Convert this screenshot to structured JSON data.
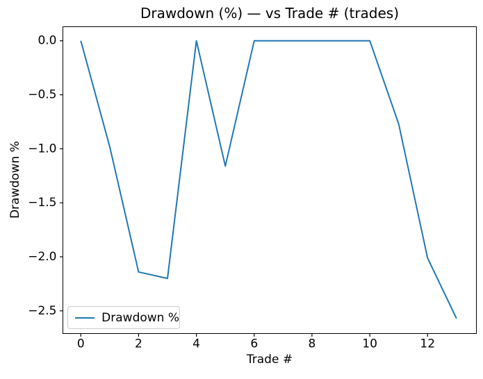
{
  "chart_data": {
    "type": "line",
    "title": "Drawdown (%) — vs Trade # (trades)",
    "xlabel": "Trade #",
    "ylabel": "Drawdown %",
    "legend": [
      "Drawdown %"
    ],
    "legend_position": "lower left",
    "x": [
      0,
      1,
      2,
      3,
      4,
      5,
      6,
      7,
      8,
      9,
      10,
      11,
      12,
      13
    ],
    "series": [
      {
        "name": "Drawdown %",
        "values": [
          0.0,
          -0.98,
          -2.14,
          -2.2,
          0.0,
          -1.16,
          0.0,
          0.0,
          0.0,
          0.0,
          0.0,
          -0.77,
          -2.01,
          -2.57
        ]
      }
    ],
    "xticks": [
      0,
      2,
      4,
      6,
      8,
      10,
      12
    ],
    "xtick_labels": [
      "0",
      "2",
      "4",
      "6",
      "8",
      "10",
      "12"
    ],
    "yticks": [
      0.0,
      -0.5,
      -1.0,
      -1.5,
      -2.0,
      -2.5
    ],
    "ytick_labels": [
      "0.0",
      "−0.5",
      "−1.0",
      "−1.5",
      "−2.0",
      "−2.5"
    ],
    "xlim": [
      -0.62,
      13.69
    ],
    "ylim": [
      -2.71,
      0.13
    ],
    "grid": false,
    "colors": {
      "line": "#1f77b4",
      "spine": "#000000",
      "text": "#000000",
      "legend_border": "#cccccc",
      "background": "#ffffff"
    }
  }
}
